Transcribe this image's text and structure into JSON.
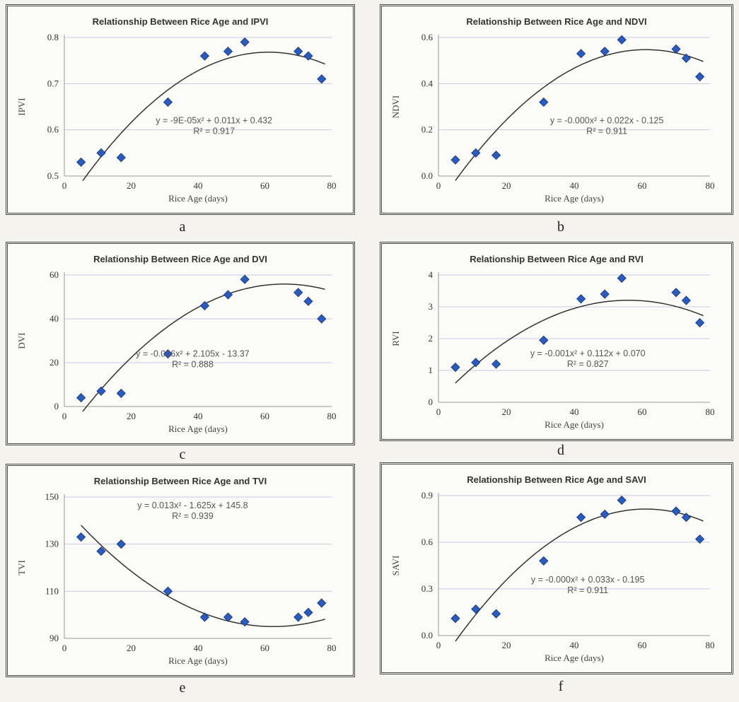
{
  "colors": {
    "marker": "#2a5bbf",
    "trendline": "#333333",
    "gridline": "#c9c9e8"
  },
  "chart_data": [
    {
      "type": "scatter",
      "title": "Relationship Between Rice Age and IPVI",
      "xlabel": "Rice Age (days)",
      "ylabel": "IPVI",
      "caption": "a",
      "xlim": [
        0,
        80
      ],
      "ylim": [
        0.5,
        0.8
      ],
      "xticks": [
        "0",
        "20",
        "40",
        "60",
        "80"
      ],
      "yticks": [
        "0.5",
        "0.6",
        "0.7",
        "0.8"
      ],
      "x": [
        5,
        11,
        17,
        31,
        42,
        49,
        54,
        70,
        73,
        77
      ],
      "y": [
        0.53,
        0.55,
        0.54,
        0.66,
        0.76,
        0.77,
        0.79,
        0.77,
        0.76,
        0.71
      ],
      "trendline": {
        "a": -9e-05,
        "b": 0.011,
        "c": 0.432
      },
      "equation": "y = -9E-05x² + 0.011x + 0.432",
      "r2": "R² = 0.917",
      "grid": true
    },
    {
      "type": "scatter",
      "title": "Relationship Between Rice Age and NDVI",
      "xlabel": "Rice Age (days)",
      "ylabel": "NDVI",
      "caption": "b",
      "xlim": [
        0,
        80
      ],
      "ylim": [
        0.0,
        0.6
      ],
      "xticks": [
        "0",
        "20",
        "40",
        "60",
        "80"
      ],
      "yticks": [
        "0.0",
        "0.2",
        "0.4",
        "0.6"
      ],
      "x": [
        5,
        11,
        17,
        31,
        42,
        49,
        54,
        70,
        73,
        77
      ],
      "y": [
        0.07,
        0.1,
        0.09,
        0.32,
        0.53,
        0.54,
        0.59,
        0.55,
        0.51,
        0.43
      ],
      "trendline": {
        "a": -0.00018,
        "b": 0.022,
        "c": -0.125
      },
      "equation": "y = -0.000x² + 0.022x - 0.125",
      "r2": "R² = 0.911",
      "grid": true
    },
    {
      "type": "scatter",
      "title": "Relationship Between Rice Age and DVI",
      "xlabel": "Rice Age (days)",
      "ylabel": "DVI",
      "caption": "c",
      "xlim": [
        0,
        80
      ],
      "ylim": [
        0,
        60
      ],
      "xticks": [
        "0",
        "20",
        "40",
        "60",
        "80"
      ],
      "yticks": [
        "0",
        "20",
        "40",
        "60"
      ],
      "x": [
        5,
        11,
        17,
        31,
        42,
        49,
        54,
        70,
        73,
        77
      ],
      "y": [
        4,
        7,
        6,
        24,
        46,
        51,
        58,
        52,
        48,
        40
      ],
      "trendline": {
        "a": -0.016,
        "b": 2.105,
        "c": -13.37
      },
      "equation": "y = -0.016x² + 2.105x - 13.37",
      "r2": "R² = 0.888",
      "grid": true
    },
    {
      "type": "scatter",
      "title": "Relationship Between Rice Age and RVI",
      "xlabel": "Rice Age (days)",
      "ylabel": "RVI",
      "caption": "d",
      "xlim": [
        0,
        80
      ],
      "ylim": [
        0,
        4
      ],
      "xticks": [
        "0",
        "20",
        "40",
        "60",
        "80"
      ],
      "yticks": [
        "0",
        "1",
        "2",
        "3",
        "4"
      ],
      "x": [
        5,
        11,
        17,
        31,
        42,
        49,
        54,
        70,
        73,
        77
      ],
      "y": [
        1.1,
        1.25,
        1.2,
        1.95,
        3.25,
        3.4,
        3.9,
        3.45,
        3.2,
        2.5
      ],
      "trendline": {
        "a": -0.001,
        "b": 0.112,
        "c": 0.07
      },
      "equation": "y = -0.001x² + 0.112x + 0.070",
      "r2": "R² = 0.827",
      "grid": true
    },
    {
      "type": "scatter",
      "title": "Relationship Between Rice Age and TVI",
      "xlabel": "Rice Age (days)",
      "ylabel": "TVI",
      "caption": "e",
      "xlim": [
        0,
        80
      ],
      "ylim": [
        90,
        150
      ],
      "xticks": [
        "0",
        "20",
        "40",
        "60",
        "80"
      ],
      "yticks": [
        "90",
        "110",
        "130",
        "150"
      ],
      "x": [
        5,
        11,
        17,
        31,
        42,
        49,
        54,
        70,
        73,
        77
      ],
      "y": [
        133,
        127,
        130,
        110,
        99,
        99,
        97,
        99,
        101,
        105
      ],
      "trendline": {
        "a": 0.013,
        "b": -1.625,
        "c": 145.8
      },
      "equation": "y = 0.013x² - 1.625x + 145.8",
      "r2": "R² = 0.939",
      "grid": true
    },
    {
      "type": "scatter",
      "title": "Relationship Between Rice Age and SAVI",
      "xlabel": "Rice Age (days)",
      "ylabel": "SAVI",
      "caption": "f",
      "xlim": [
        0,
        80
      ],
      "ylim": [
        0.0,
        0.9
      ],
      "xticks": [
        "0",
        "20",
        "40",
        "60",
        "80"
      ],
      "yticks": [
        "0.0",
        "0.3",
        "0.6",
        "0.9"
      ],
      "x": [
        5,
        11,
        17,
        31,
        42,
        49,
        54,
        70,
        73,
        77
      ],
      "y": [
        0.11,
        0.17,
        0.14,
        0.48,
        0.76,
        0.78,
        0.87,
        0.8,
        0.76,
        0.62
      ],
      "trendline": {
        "a": -0.00027,
        "b": 0.033,
        "c": -0.195
      },
      "equation": "y = -0.000x² + 0.033x - 0.195",
      "r2": "R² = 0.911",
      "grid": true
    }
  ]
}
